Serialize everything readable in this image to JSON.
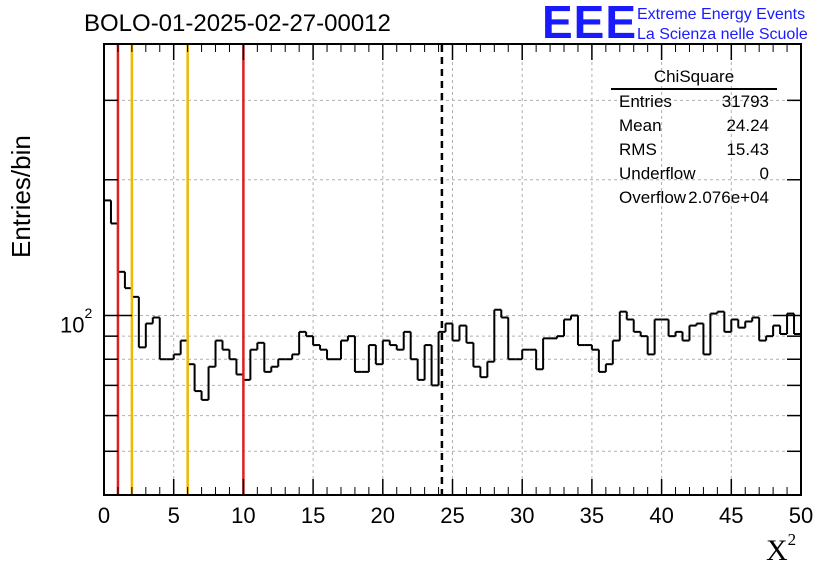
{
  "chart_data": {
    "type": "histogram",
    "title": "BOLO-01-2025-02-27-00012",
    "xlabel": "X",
    "xlabel_superscript": "2",
    "ylabel": "Entries/bin",
    "xlim": [
      0,
      50
    ],
    "ylim_log": [
      40,
      400
    ],
    "log_y": true,
    "grid": true,
    "bin_width": 0.5,
    "x_ticks": [
      0,
      5,
      10,
      15,
      20,
      25,
      30,
      35,
      40,
      45,
      50
    ],
    "y_tick_label_base": "10",
    "y_tick_label_exp": "2",
    "values": [
      180,
      160,
      125,
      115,
      110,
      85,
      96,
      99,
      80,
      80,
      82,
      88,
      78,
      68,
      65,
      77,
      88,
      84,
      80,
      74,
      72,
      84,
      87,
      75,
      77,
      80,
      80,
      82,
      92,
      90,
      86,
      84,
      80,
      80,
      88,
      90,
      75,
      75,
      86,
      78,
      88,
      86,
      84,
      92,
      80,
      72,
      86,
      70,
      92,
      96,
      88,
      95,
      87,
      77,
      73,
      79,
      103,
      99,
      80,
      80,
      84,
      84,
      76,
      89,
      89,
      90,
      98,
      100,
      86,
      86,
      84,
      75,
      78,
      88,
      102,
      98,
      92,
      90,
      82,
      98,
      98,
      90,
      92,
      88,
      95,
      96,
      82,
      101,
      102,
      92,
      98,
      94,
      97,
      99,
      88,
      90,
      95,
      91,
      101,
      91
    ],
    "vertical_lines": [
      {
        "x": 1,
        "color": "#dd2020",
        "style": "solid"
      },
      {
        "x": 2,
        "color": "#f0b800",
        "style": "solid"
      },
      {
        "x": 6,
        "color": "#f0b800",
        "style": "solid"
      },
      {
        "x": 10,
        "color": "#dd2020",
        "style": "solid"
      },
      {
        "x": 24.24,
        "color": "#000000",
        "style": "dashed"
      }
    ]
  },
  "stats": {
    "title": "ChiSquare",
    "rows": [
      {
        "key": "Entries",
        "value": "31793"
      },
      {
        "key": "Mean",
        "value": "24.24"
      },
      {
        "key": "RMS",
        "value": "15.43"
      },
      {
        "key": "Underflow",
        "value": "0"
      },
      {
        "key": "Overflow",
        "value": "2.076e+04"
      }
    ]
  },
  "logo": {
    "mark": "EEE",
    "line1": "Extreme Energy Events",
    "line2": "La Scienza nelle Scuole",
    "color": "#1a1aff"
  }
}
